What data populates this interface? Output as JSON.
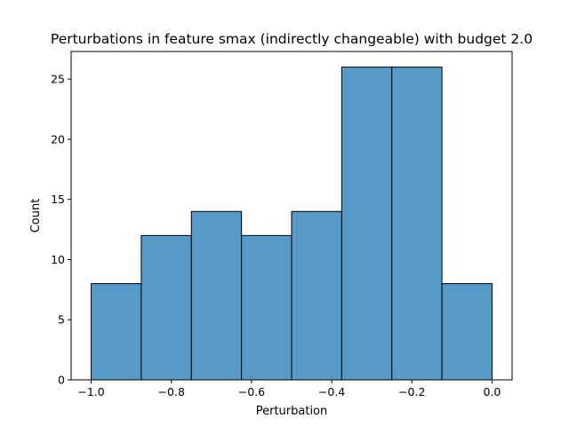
{
  "chart_data": {
    "type": "bar",
    "title": "Perturbations in feature smax (indirectly changeable) with budget 2.0",
    "xlabel": "Perturbation",
    "ylabel": "Count",
    "bin_edges": [
      -1.0,
      -0.875,
      -0.75,
      -0.625,
      -0.5,
      -0.375,
      -0.25,
      -0.125,
      0.0
    ],
    "values": [
      8,
      12,
      14,
      12,
      14,
      26,
      26,
      8
    ],
    "xlim": [
      -1.05,
      0.05
    ],
    "ylim": [
      0,
      27.3
    ],
    "xticks": [
      -1.0,
      -0.8,
      -0.6,
      -0.4,
      -0.2,
      0.0
    ],
    "xtick_labels": [
      "−1.0",
      "−0.8",
      "−0.6",
      "−0.4",
      "−0.2",
      "0.0"
    ],
    "yticks": [
      0,
      5,
      10,
      15,
      20,
      25
    ],
    "ytick_labels": [
      "0",
      "5",
      "10",
      "15",
      "20",
      "25"
    ],
    "grid": false,
    "bar_color": "#5799c7",
    "edge_color": "#000000"
  }
}
